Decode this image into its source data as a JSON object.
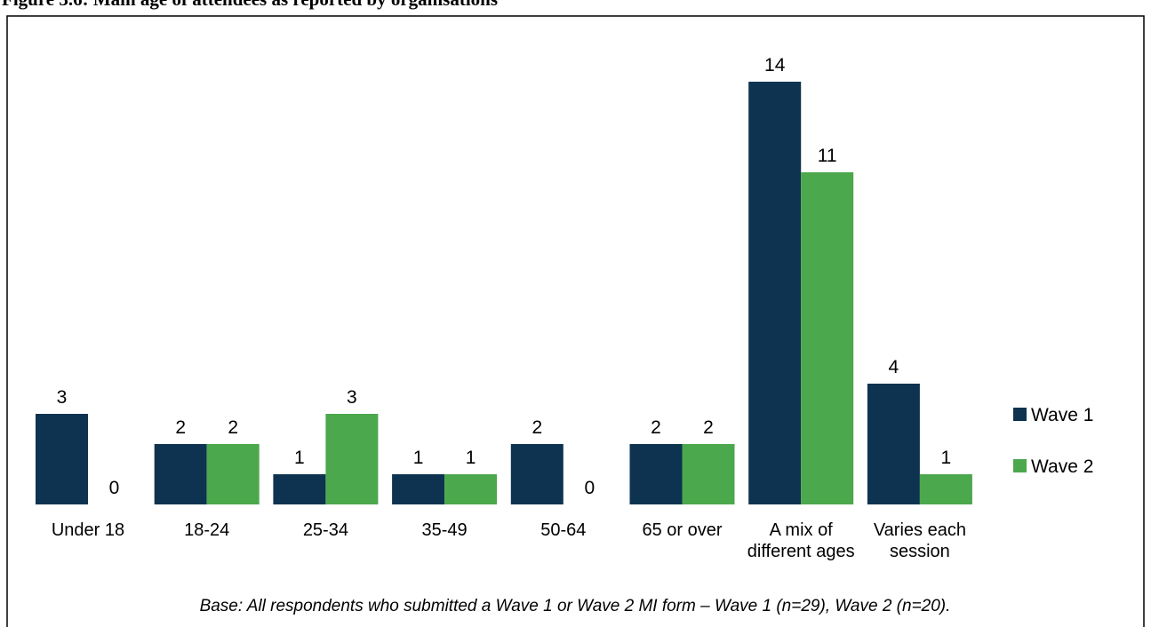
{
  "chart_data": {
    "type": "bar",
    "title": "Figure 3.6: Main age of attendees as reported by organisations",
    "categories": [
      "Under 18",
      "18-24",
      "25-34",
      "35-49",
      "50-64",
      "65 or over",
      "A mix of different ages",
      "Varies each session"
    ],
    "series": [
      {
        "name": "Wave 1",
        "color": "#0d3350",
        "values": [
          3,
          2,
          1,
          1,
          2,
          2,
          14,
          4
        ]
      },
      {
        "name": "Wave 2",
        "color": "#4ba84c",
        "values": [
          0,
          2,
          3,
          1,
          0,
          2,
          11,
          1
        ]
      }
    ],
    "legend": "right",
    "note": "Base: All respondents who submitted a Wave 1 or Wave 2 MI form – Wave 1 (n=29), Wave 2 (n=20)."
  }
}
